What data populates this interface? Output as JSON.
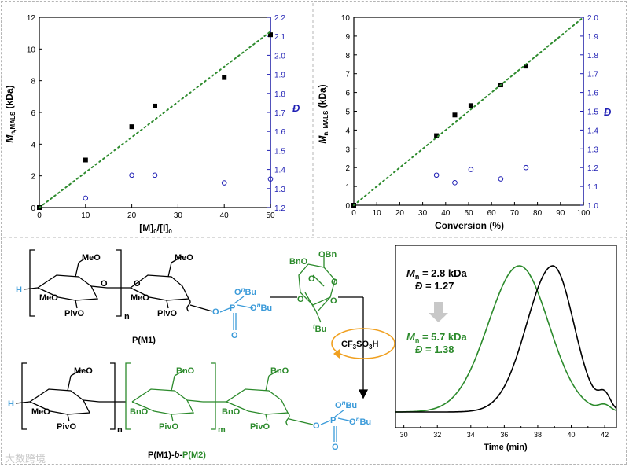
{
  "colors": {
    "axis": "#000000",
    "right_axis": "#1f1fb4",
    "fit_line": "#2e8b2e",
    "m2_green": "#2b8a2b",
    "m1_blue": "#3a9ad9",
    "gpc_black": "#000000",
    "gpc_green": "#2b8a2b",
    "arrow_orange": "#f0a020",
    "divider": "#b5b5b5"
  },
  "chart_data": [
    {
      "id": "chart1",
      "type": "scatter",
      "xlabel_main": "[M]",
      "xlabel_sub1": "0",
      "xlabel_mid": "/[I]",
      "xlabel_sub2": "0",
      "ylabel_main": "M",
      "ylabel_sub": "n,MALS",
      "ylabel_unit": " (kDa)",
      "y2label": "Đ",
      "xlim": [
        0,
        50
      ],
      "ylim": [
        0,
        12
      ],
      "y2lim": [
        1.2,
        2.2
      ],
      "x_ticks": [
        "0",
        "10",
        "20",
        "30",
        "40",
        "50"
      ],
      "y_ticks": [
        "0",
        "2",
        "4",
        "6",
        "8",
        "10",
        "12"
      ],
      "y2_ticks": [
        "1.2",
        "1.3",
        "1.4",
        "1.5",
        "1.6",
        "1.7",
        "1.8",
        "1.9",
        "2.0",
        "2.1",
        "2.2"
      ],
      "series": [
        {
          "name": "Mn",
          "marker": "filled-square",
          "x": [
            0,
            10,
            20,
            25,
            40,
            50
          ],
          "y": [
            0,
            3.0,
            5.1,
            6.4,
            8.2,
            10.9
          ]
        },
        {
          "name": "Dispersity",
          "marker": "open-circle",
          "axis": "right",
          "x": [
            10,
            20,
            25,
            40,
            50
          ],
          "y": [
            1.25,
            1.37,
            1.37,
            1.33,
            1.35
          ]
        },
        {
          "name": "Theoretical",
          "style": "dotted",
          "x": [
            0,
            50
          ],
          "y": [
            0,
            11.1
          ]
        }
      ]
    },
    {
      "id": "chart2",
      "type": "scatter",
      "xlabel": "Conversion (%)",
      "ylabel_main": "M",
      "ylabel_sub": "n, MALS",
      "ylabel_unit": " (kDa)",
      "y2label": "Đ",
      "xlim": [
        0,
        100
      ],
      "ylim": [
        0,
        10
      ],
      "y2lim": [
        1.0,
        2.0
      ],
      "x_ticks": [
        "0",
        "10",
        "20",
        "30",
        "40",
        "50",
        "60",
        "70",
        "80",
        "90",
        "100"
      ],
      "y_ticks": [
        "0",
        "1",
        "2",
        "3",
        "4",
        "5",
        "6",
        "7",
        "8",
        "9",
        "10"
      ],
      "y2_ticks": [
        "1.0",
        "1.1",
        "1.2",
        "1.3",
        "1.4",
        "1.5",
        "1.6",
        "1.7",
        "1.8",
        "1.9",
        "2.0"
      ],
      "series": [
        {
          "name": "Mn",
          "marker": "filled-square",
          "x": [
            0,
            36,
            44,
            51,
            64,
            75
          ],
          "y": [
            0,
            3.7,
            4.8,
            5.3,
            6.4,
            7.4
          ]
        },
        {
          "name": "Dispersity",
          "marker": "open-circle",
          "axis": "right",
          "x": [
            36,
            44,
            51,
            64,
            75
          ],
          "y": [
            1.16,
            1.12,
            1.19,
            1.14,
            1.2
          ]
        },
        {
          "name": "Theoretical",
          "style": "dotted",
          "x": [
            0,
            100
          ],
          "y": [
            0,
            10
          ]
        }
      ]
    },
    {
      "id": "gpc",
      "type": "line",
      "xlabel": "Time (min)",
      "xlim": [
        29.5,
        42.7
      ],
      "x_ticks": [
        "30",
        "32",
        "34",
        "36",
        "38",
        "40",
        "42"
      ],
      "series": [
        {
          "name": "P(M1)",
          "color": "black",
          "peak": 38.9,
          "mn_label": "n",
          "mn_value": " = 2.8 kDa",
          "d_value": " = 1.27"
        },
        {
          "name": "P(M1)-b-P(M2)",
          "color": "green",
          "peak": 36.9,
          "mn_label": "n",
          "mn_value": " = 5.7 kDa",
          "d_value": " = 1.38"
        }
      ],
      "label_M": "M",
      "label_D": "Đ"
    }
  ],
  "scheme": {
    "meo": "MeO",
    "meo2": "MeO",
    "meo3": "MeO",
    "meo4": "MeO",
    "pivo": "PivO",
    "pivo2": "PivO",
    "pivo3": "PivO",
    "pivo4": "PivO",
    "bno": "BnO",
    "bno2": "BnO",
    "bno3": "BnO",
    "bno4": "BnO",
    "obn": "OBn",
    "h": "H",
    "h2": "H",
    "n": "n",
    "n2": "n",
    "m": "m",
    "o": "O",
    "p": "P",
    "obu_o": "O",
    "obu_n": "n",
    "obu_bu": "Bu",
    "tbu_t": "t",
    "tbu_bu": "Bu",
    "reagent": "CF",
    "reagent_sub1": "3",
    "reagent_mid": "SO",
    "reagent_sub2": "3",
    "reagent_end": "H",
    "label1": "P(M1)",
    "label2_a": "P(M1)-",
    "label2_b": "b",
    "label2_c": "-",
    "label2_d": "P(M2)"
  },
  "watermark": "大数跨境"
}
